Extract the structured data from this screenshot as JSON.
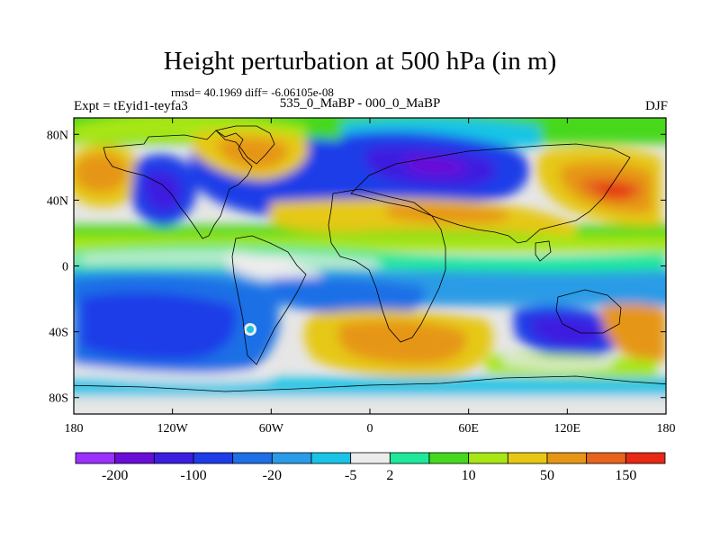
{
  "figure": {
    "title": "Height perturbation at 500 hPa (in m)",
    "stats_line": "rmsd= 40.1969 diff= -6.06105e-08",
    "left_label": "Expt = tEyid1-teyfa3",
    "center_label": "535_0_MaBP - 000_0_MaBP",
    "right_label": "DJF"
  },
  "map": {
    "projection": "cylindrical-equidistant",
    "lon_range": [
      -180,
      180
    ],
    "lat_range": [
      -90,
      90
    ],
    "field": "500 hPa geopotential height perturbation",
    "units": "m",
    "missing_color": "#e6e6e6",
    "lon_ticks": [
      {
        "value": -180,
        "label": "180"
      },
      {
        "value": -120,
        "label": "120W"
      },
      {
        "value": -60,
        "label": "60W"
      },
      {
        "value": 0,
        "label": "0"
      },
      {
        "value": 60,
        "label": "60E"
      },
      {
        "value": 120,
        "label": "120E"
      },
      {
        "value": 180,
        "label": "180"
      }
    ],
    "lat_ticks": [
      {
        "value": 80,
        "label": "80N"
      },
      {
        "value": 40,
        "label": "40N"
      },
      {
        "value": 0,
        "label": "0"
      },
      {
        "value": -40,
        "label": "40S"
      },
      {
        "value": -80,
        "label": "80S"
      }
    ]
  },
  "colorbar": {
    "colors": [
      "#9b30ff",
      "#6a0dd8",
      "#3c1ee0",
      "#1e3ce8",
      "#1f6fe6",
      "#2a9be6",
      "#19c4e6",
      "#ececec",
      "#1ee89b",
      "#46d81e",
      "#a8e614",
      "#e6c814",
      "#e69614",
      "#e6641e",
      "#e62814"
    ],
    "tick_labels": [
      "-200",
      "-100",
      "-20",
      "-5",
      "2",
      "10",
      "50",
      "150"
    ],
    "tick_edges": [
      1,
      3,
      5,
      7,
      8,
      10,
      12,
      14
    ]
  }
}
